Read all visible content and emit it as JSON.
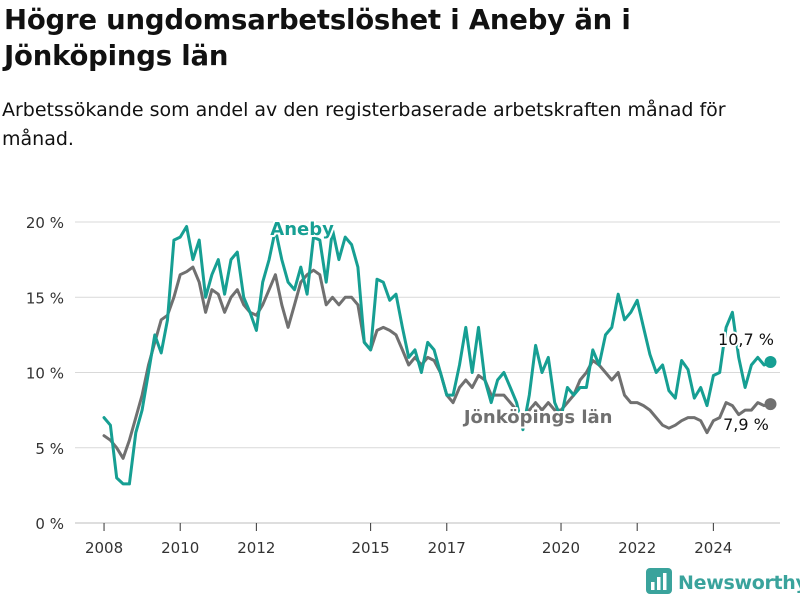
{
  "title": "Högre ungdomsarbetslöshet i Aneby än i Jönköpings län",
  "subtitle": "Arbetssökande som andel av den registerbaserade arbetskraften månad för månad.",
  "brand": {
    "name": "Newsworthy",
    "icon": "newsworthy-bar-chart-logo-icon"
  },
  "colors": {
    "aneby": "#169f93",
    "lan": "#707070",
    "grid": "#d9d9d9",
    "brand": "#3aa39c"
  },
  "chart_data": {
    "type": "line",
    "title": "Högre ungdomsarbetslöshet i Aneby än i Jönköpings län",
    "subtitle": "Arbetssökande som andel av den registerbaserade arbetskraften månad för månad.",
    "x_ticks": [
      "2008",
      "2010",
      "2012",
      "2015",
      "2017",
      "2020",
      "2022",
      "2024"
    ],
    "y_ticks": [
      0,
      5,
      10,
      15,
      20
    ],
    "y_tick_labels": [
      "0 %",
      "5 %",
      "10 %",
      "15 %",
      "20 %"
    ],
    "ylim": [
      0,
      20
    ],
    "xlim": [
      "2007-07",
      "2025-10"
    ],
    "grid": "horizontal",
    "series": [
      {
        "name": "Aneby",
        "color": "#169f93",
        "end_label": "10,7 %",
        "points": [
          [
            "2008-01",
            7.0
          ],
          [
            "2008-03",
            6.5
          ],
          [
            "2008-05",
            3.0
          ],
          [
            "2008-07",
            2.6
          ],
          [
            "2008-09",
            2.6
          ],
          [
            "2008-11",
            6.0
          ],
          [
            "2009-01",
            7.5
          ],
          [
            "2009-03",
            10.0
          ],
          [
            "2009-05",
            12.5
          ],
          [
            "2009-07",
            11.3
          ],
          [
            "2009-09",
            13.5
          ],
          [
            "2009-11",
            18.8
          ],
          [
            "2010-01",
            19.0
          ],
          [
            "2010-03",
            19.7
          ],
          [
            "2010-05",
            17.5
          ],
          [
            "2010-07",
            18.8
          ],
          [
            "2010-09",
            15.0
          ],
          [
            "2010-11",
            16.5
          ],
          [
            "2011-01",
            17.5
          ],
          [
            "2011-03",
            15.2
          ],
          [
            "2011-05",
            17.5
          ],
          [
            "2011-07",
            18.0
          ],
          [
            "2011-09",
            15.0
          ],
          [
            "2011-11",
            14.0
          ],
          [
            "2012-01",
            12.8
          ],
          [
            "2012-03",
            16.0
          ],
          [
            "2012-05",
            17.5
          ],
          [
            "2012-07",
            19.5
          ],
          [
            "2012-09",
            17.5
          ],
          [
            "2012-11",
            16.0
          ],
          [
            "2013-01",
            15.5
          ],
          [
            "2013-03",
            17.0
          ],
          [
            "2013-05",
            15.2
          ],
          [
            "2013-07",
            19.0
          ],
          [
            "2013-09",
            18.8
          ],
          [
            "2013-11",
            16.0
          ],
          [
            "2014-01",
            19.5
          ],
          [
            "2014-03",
            17.5
          ],
          [
            "2014-05",
            19.0
          ],
          [
            "2014-07",
            18.5
          ],
          [
            "2014-09",
            17.0
          ],
          [
            "2014-11",
            12.0
          ],
          [
            "2015-01",
            11.5
          ],
          [
            "2015-03",
            16.2
          ],
          [
            "2015-05",
            16.0
          ],
          [
            "2015-07",
            14.8
          ],
          [
            "2015-09",
            15.2
          ],
          [
            "2015-11",
            13.0
          ],
          [
            "2016-01",
            11.0
          ],
          [
            "2016-03",
            11.5
          ],
          [
            "2016-05",
            10.0
          ],
          [
            "2016-07",
            12.0
          ],
          [
            "2016-09",
            11.5
          ],
          [
            "2016-11",
            10.0
          ],
          [
            "2017-01",
            8.5
          ],
          [
            "2017-03",
            8.5
          ],
          [
            "2017-05",
            10.5
          ],
          [
            "2017-07",
            13.0
          ],
          [
            "2017-09",
            10.0
          ],
          [
            "2017-11",
            13.0
          ],
          [
            "2018-01",
            9.5
          ],
          [
            "2018-03",
            8.0
          ],
          [
            "2018-05",
            9.5
          ],
          [
            "2018-07",
            10.0
          ],
          [
            "2018-09",
            9.0
          ],
          [
            "2018-11",
            8.0
          ],
          [
            "2019-01",
            6.2
          ],
          [
            "2019-03",
            8.5
          ],
          [
            "2019-05",
            11.8
          ],
          [
            "2019-07",
            10.0
          ],
          [
            "2019-09",
            11.0
          ],
          [
            "2019-11",
            8.0
          ],
          [
            "2020-01",
            7.0
          ],
          [
            "2020-03",
            9.0
          ],
          [
            "2020-05",
            8.5
          ],
          [
            "2020-07",
            9.0
          ],
          [
            "2020-09",
            9.0
          ],
          [
            "2020-11",
            11.5
          ],
          [
            "2021-01",
            10.5
          ],
          [
            "2021-03",
            12.5
          ],
          [
            "2021-05",
            13.0
          ],
          [
            "2021-07",
            15.2
          ],
          [
            "2021-09",
            13.5
          ],
          [
            "2021-11",
            14.0
          ],
          [
            "2022-01",
            14.8
          ],
          [
            "2022-03",
            13.0
          ],
          [
            "2022-05",
            11.2
          ],
          [
            "2022-07",
            10.0
          ],
          [
            "2022-09",
            10.5
          ],
          [
            "2022-11",
            8.8
          ],
          [
            "2023-01",
            8.3
          ],
          [
            "2023-03",
            10.8
          ],
          [
            "2023-05",
            10.2
          ],
          [
            "2023-07",
            8.3
          ],
          [
            "2023-09",
            9.0
          ],
          [
            "2023-11",
            7.8
          ],
          [
            "2024-01",
            9.8
          ],
          [
            "2024-03",
            10.0
          ],
          [
            "2024-05",
            13.0
          ],
          [
            "2024-07",
            14.0
          ],
          [
            "2024-09",
            11.0
          ],
          [
            "2024-11",
            9.0
          ],
          [
            "2025-01",
            10.5
          ],
          [
            "2025-03",
            11.0
          ],
          [
            "2025-05",
            10.5
          ],
          [
            "2025-07",
            10.7
          ]
        ]
      },
      {
        "name": "Jönköpings län",
        "color": "#707070",
        "end_label": "7,9 %",
        "points": [
          [
            "2008-01",
            5.8
          ],
          [
            "2008-03",
            5.5
          ],
          [
            "2008-05",
            5.0
          ],
          [
            "2008-07",
            4.3
          ],
          [
            "2008-09",
            5.5
          ],
          [
            "2008-11",
            7.0
          ],
          [
            "2009-01",
            8.5
          ],
          [
            "2009-03",
            10.5
          ],
          [
            "2009-05",
            12.0
          ],
          [
            "2009-07",
            13.5
          ],
          [
            "2009-09",
            13.8
          ],
          [
            "2009-11",
            15.0
          ],
          [
            "2010-01",
            16.5
          ],
          [
            "2010-03",
            16.7
          ],
          [
            "2010-05",
            17.0
          ],
          [
            "2010-07",
            16.0
          ],
          [
            "2010-09",
            14.0
          ],
          [
            "2010-11",
            15.5
          ],
          [
            "2011-01",
            15.2
          ],
          [
            "2011-03",
            14.0
          ],
          [
            "2011-05",
            15.0
          ],
          [
            "2011-07",
            15.5
          ],
          [
            "2011-09",
            14.5
          ],
          [
            "2011-11",
            14.0
          ],
          [
            "2012-01",
            13.8
          ],
          [
            "2012-03",
            14.5
          ],
          [
            "2012-05",
            15.5
          ],
          [
            "2012-07",
            16.5
          ],
          [
            "2012-09",
            14.5
          ],
          [
            "2012-11",
            13.0
          ],
          [
            "2013-01",
            14.5
          ],
          [
            "2013-03",
            16.0
          ],
          [
            "2013-05",
            16.5
          ],
          [
            "2013-07",
            16.8
          ],
          [
            "2013-09",
            16.5
          ],
          [
            "2013-11",
            14.5
          ],
          [
            "2014-01",
            15.0
          ],
          [
            "2014-03",
            14.5
          ],
          [
            "2014-05",
            15.0
          ],
          [
            "2014-07",
            15.0
          ],
          [
            "2014-09",
            14.5
          ],
          [
            "2014-11",
            12.0
          ],
          [
            "2015-01",
            11.5
          ],
          [
            "2015-03",
            12.8
          ],
          [
            "2015-05",
            13.0
          ],
          [
            "2015-07",
            12.8
          ],
          [
            "2015-09",
            12.5
          ],
          [
            "2015-11",
            11.5
          ],
          [
            "2016-01",
            10.5
          ],
          [
            "2016-03",
            11.0
          ],
          [
            "2016-05",
            10.5
          ],
          [
            "2016-07",
            11.0
          ],
          [
            "2016-09",
            10.8
          ],
          [
            "2016-11",
            10.0
          ],
          [
            "2017-01",
            8.5
          ],
          [
            "2017-03",
            8.0
          ],
          [
            "2017-05",
            9.0
          ],
          [
            "2017-07",
            9.5
          ],
          [
            "2017-09",
            9.0
          ],
          [
            "2017-11",
            9.8
          ],
          [
            "2018-01",
            9.5
          ],
          [
            "2018-03",
            8.5
          ],
          [
            "2018-05",
            8.5
          ],
          [
            "2018-07",
            8.5
          ],
          [
            "2018-09",
            8.0
          ],
          [
            "2018-11",
            7.5
          ],
          [
            "2019-01",
            7.0
          ],
          [
            "2019-03",
            7.5
          ],
          [
            "2019-05",
            8.0
          ],
          [
            "2019-07",
            7.5
          ],
          [
            "2019-09",
            8.0
          ],
          [
            "2019-11",
            7.5
          ],
          [
            "2020-01",
            7.5
          ],
          [
            "2020-03",
            8.0
          ],
          [
            "2020-05",
            8.5
          ],
          [
            "2020-07",
            9.5
          ],
          [
            "2020-09",
            10.0
          ],
          [
            "2020-11",
            10.8
          ],
          [
            "2021-01",
            10.5
          ],
          [
            "2021-03",
            10.0
          ],
          [
            "2021-05",
            9.5
          ],
          [
            "2021-07",
            10.0
          ],
          [
            "2021-09",
            8.5
          ],
          [
            "2021-11",
            8.0
          ],
          [
            "2022-01",
            8.0
          ],
          [
            "2022-03",
            7.8
          ],
          [
            "2022-05",
            7.5
          ],
          [
            "2022-07",
            7.0
          ],
          [
            "2022-09",
            6.5
          ],
          [
            "2022-11",
            6.3
          ],
          [
            "2023-01",
            6.5
          ],
          [
            "2023-03",
            6.8
          ],
          [
            "2023-05",
            7.0
          ],
          [
            "2023-07",
            7.0
          ],
          [
            "2023-09",
            6.8
          ],
          [
            "2023-11",
            6.0
          ],
          [
            "2024-01",
            6.8
          ],
          [
            "2024-03",
            7.0
          ],
          [
            "2024-05",
            8.0
          ],
          [
            "2024-07",
            7.8
          ],
          [
            "2024-09",
            7.2
          ],
          [
            "2024-11",
            7.5
          ],
          [
            "2025-01",
            7.5
          ],
          [
            "2025-03",
            8.0
          ],
          [
            "2025-05",
            7.8
          ],
          [
            "2025-07",
            7.9
          ]
        ]
      }
    ]
  }
}
